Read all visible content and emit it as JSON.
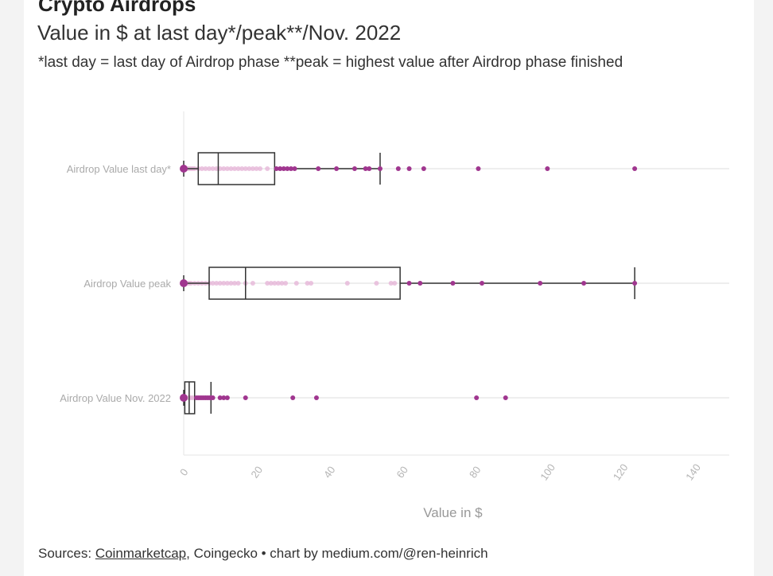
{
  "header": {
    "title": "Crypto Airdrops",
    "subtitle": "Value in $ at last day*/peak**/Nov. 2022",
    "note": "*last day = last day of Airdrop phase **peak = highest value after Airdrop phase finished"
  },
  "footer": {
    "prefix": "Sources: ",
    "source_link": "Coinmarketcap",
    "rest": ", Coingecko • chart by medium.com/@ren-heinrich"
  },
  "colors": {
    "point_dark": "#a0368f",
    "point_light": "#e6b6d8",
    "box_stroke": "#333333",
    "grid": "#eeeeee"
  },
  "chart_data": {
    "type": "box",
    "xlabel": "Value in $",
    "xlim": [
      0,
      150
    ],
    "xticks": [
      0,
      20,
      40,
      60,
      80,
      100,
      120,
      140
    ],
    "grid": "horizontal category lines",
    "categories": [
      {
        "label": "Airdrop Value last day*",
        "box": {
          "min": 0,
          "q1": 4,
          "median": 9.5,
          "q3": 25,
          "max": 54
        },
        "points_inside": [
          0,
          0.5,
          1,
          1.5,
          2,
          2.5,
          3,
          4,
          5,
          6,
          7,
          8,
          9,
          10,
          11,
          12,
          13,
          14,
          15,
          16,
          17,
          18,
          19,
          20,
          21,
          23
        ],
        "points_outside": [
          25.5,
          26.5,
          27.5,
          28.5,
          29.5,
          30.5,
          37,
          42,
          47,
          50,
          51,
          54,
          59,
          62,
          66,
          81,
          100,
          124
        ]
      },
      {
        "label": "Airdrop Value peak",
        "box": {
          "min": 0,
          "q1": 7,
          "median": 17,
          "q3": 59.5,
          "max": 124
        },
        "points_inside": [
          0,
          0.5,
          1,
          1.5,
          2,
          3,
          4,
          5,
          6,
          7,
          8,
          9,
          10,
          11,
          12,
          13,
          14,
          15,
          17,
          19,
          23,
          24,
          25,
          26,
          27,
          28,
          31,
          34,
          35,
          45,
          53,
          57,
          58
        ],
        "points_outside": [
          62,
          65,
          74,
          82,
          98,
          110,
          124
        ]
      },
      {
        "label": "Airdrop Value Nov. 2022",
        "box": {
          "min": 0,
          "q1": 0.3,
          "median": 1.5,
          "q3": 3,
          "max": 7.5
        },
        "points_inside": [
          0,
          0.5,
          1,
          1.5,
          2,
          2.5
        ],
        "points_outside": [
          3.5,
          4,
          4.5,
          5,
          5.5,
          6,
          6.5,
          7,
          7.5,
          8,
          10,
          11,
          12,
          17,
          30,
          36.5,
          80.5,
          88.5
        ]
      }
    ]
  }
}
